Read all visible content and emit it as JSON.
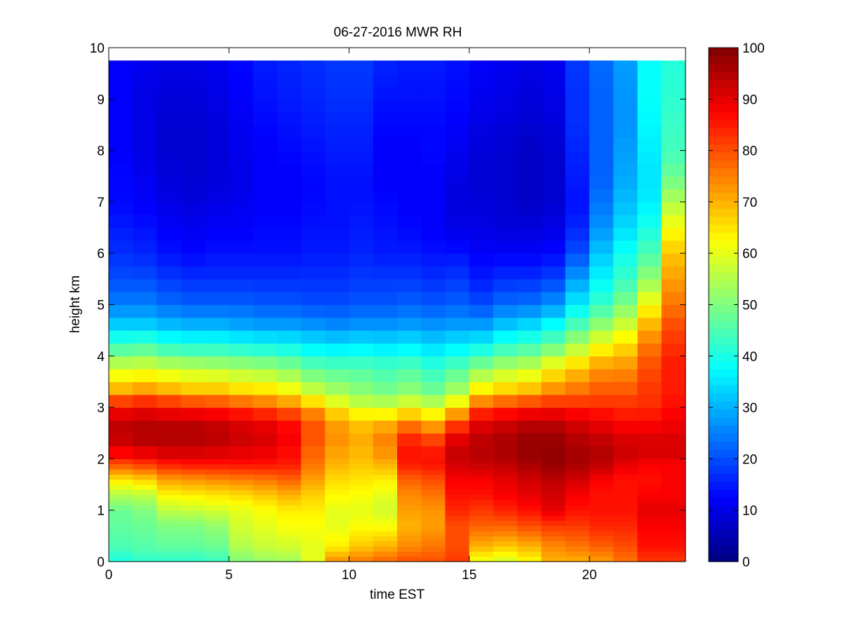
{
  "chart_data": {
    "type": "heatmap",
    "title": "06-27-2016 MWR RH",
    "xlabel": "time EST",
    "ylabel": "height km",
    "xlim": [
      0,
      24
    ],
    "ylim": [
      0,
      10
    ],
    "x_ticks": [
      0,
      5,
      10,
      15,
      20
    ],
    "y_ticks": [
      0,
      1,
      2,
      3,
      4,
      5,
      6,
      7,
      8,
      9,
      10
    ],
    "colorbar": {
      "min": 0,
      "max": 100,
      "ticks": [
        0,
        10,
        20,
        30,
        40,
        50,
        60,
        70,
        80,
        90,
        100
      ],
      "colormap": "jet"
    },
    "time_start": 0,
    "time_step": 1,
    "height_levels": [
      0,
      0.1,
      0.2,
      0.3,
      0.4,
      0.5,
      0.6,
      0.7,
      0.8,
      0.9,
      1.0,
      1.1,
      1.2,
      1.3,
      1.4,
      1.5,
      1.6,
      1.7,
      1.8,
      1.9,
      2.0,
      2.25,
      2.5,
      2.75,
      3.0,
      3.25,
      3.5,
      3.75,
      4.0,
      4.25,
      4.5,
      4.75,
      5.0,
      5.25,
      5.5,
      5.75,
      6.0,
      6.25,
      6.5,
      6.75,
      7.0,
      7.25,
      7.5,
      7.75,
      8.0,
      8.25,
      8.5,
      8.75,
      9.0,
      9.25,
      9.5,
      9.75
    ],
    "anchor_heights": [
      0,
      0.3,
      0.7,
      1.0,
      1.3,
      1.6,
      1.9,
      2.2,
      2.5,
      2.8,
      3.1,
      3.4,
      3.8,
      4.2,
      4.6,
      5.0,
      5.5,
      6.0,
      6.5,
      7.0,
      7.5,
      8.0,
      8.5,
      9.0,
      9.75
    ],
    "rh_profiles": [
      [
        40,
        45,
        47,
        48,
        55,
        65,
        80,
        90,
        95,
        92,
        82,
        68,
        57,
        44,
        33,
        25,
        20,
        17,
        15,
        13,
        13,
        12,
        12,
        12,
        12
      ],
      [
        42,
        46,
        48,
        50,
        56,
        67,
        82,
        92,
        96,
        93,
        84,
        70,
        58,
        45,
        33,
        25,
        20,
        16,
        14,
        12,
        11,
        10,
        10,
        10,
        11
      ],
      [
        42,
        47,
        50,
        56,
        63,
        72,
        85,
        93,
        96,
        92,
        82,
        68,
        56,
        42,
        31,
        23,
        18,
        14,
        12,
        10,
        9,
        8,
        8,
        9,
        10
      ],
      [
        42,
        47,
        50,
        57,
        64,
        73,
        86,
        93,
        96,
        92,
        80,
        66,
        55,
        41,
        30,
        22,
        17,
        13,
        11,
        9,
        8,
        8,
        8,
        9,
        10
      ],
      [
        43,
        48,
        52,
        58,
        65,
        74,
        86,
        92,
        95,
        91,
        79,
        66,
        54,
        41,
        30,
        22,
        17,
        14,
        12,
        10,
        9,
        9,
        9,
        10,
        11
      ],
      [
        50,
        55,
        58,
        60,
        66,
        75,
        86,
        91,
        93,
        89,
        77,
        64,
        53,
        40,
        29,
        22,
        17,
        14,
        12,
        11,
        10,
        11,
        11,
        12,
        13
      ],
      [
        52,
        57,
        60,
        62,
        68,
        76,
        86,
        90,
        92,
        87,
        75,
        63,
        52,
        39,
        28,
        21,
        17,
        14,
        13,
        12,
        12,
        12,
        13,
        14,
        15
      ],
      [
        53,
        58,
        62,
        64,
        70,
        78,
        85,
        87,
        89,
        84,
        72,
        60,
        50,
        38,
        28,
        21,
        17,
        14,
        13,
        12,
        12,
        13,
        14,
        15,
        16
      ],
      [
        60,
        60,
        62,
        64,
        67,
        72,
        76,
        78,
        80,
        78,
        66,
        55,
        46,
        36,
        27,
        20,
        17,
        15,
        14,
        13,
        13,
        14,
        15,
        16,
        17
      ],
      [
        74,
        64,
        60,
        60,
        63,
        66,
        70,
        72,
        74,
        70,
        60,
        52,
        45,
        35,
        26,
        20,
        17,
        15,
        14,
        14,
        14,
        15,
        16,
        17,
        18
      ],
      [
        76,
        68,
        62,
        60,
        62,
        65,
        68,
        70,
        71,
        66,
        56,
        50,
        45,
        36,
        27,
        21,
        18,
        16,
        15,
        14,
        14,
        15,
        16,
        17,
        18
      ],
      [
        78,
        70,
        62,
        58,
        60,
        64,
        70,
        74,
        75,
        66,
        55,
        48,
        44,
        35,
        27,
        21,
        18,
        15,
        14,
        13,
        12,
        12,
        13,
        14,
        16
      ],
      [
        80,
        74,
        70,
        72,
        74,
        78,
        85,
        86,
        82,
        70,
        58,
        50,
        45,
        36,
        28,
        22,
        18,
        15,
        13,
        12,
        12,
        12,
        13,
        14,
        15
      ],
      [
        80,
        76,
        72,
        73,
        76,
        80,
        86,
        85,
        78,
        66,
        55,
        47,
        42,
        34,
        27,
        21,
        17,
        14,
        12,
        12,
        12,
        13,
        13,
        14,
        15
      ],
      [
        82,
        80,
        80,
        84,
        86,
        88,
        92,
        93,
        88,
        76,
        62,
        52,
        45,
        36,
        28,
        22,
        18,
        14,
        10,
        9,
        10,
        11,
        12,
        13,
        14
      ],
      [
        60,
        70,
        78,
        82,
        86,
        88,
        93,
        95,
        93,
        88,
        75,
        62,
        50,
        38,
        28,
        20,
        15,
        12,
        10,
        9,
        8,
        9,
        10,
        11,
        12
      ],
      [
        58,
        68,
        78,
        84,
        88,
        90,
        94,
        96,
        95,
        90,
        78,
        65,
        54,
        42,
        32,
        23,
        17,
        12,
        9,
        8,
        8,
        8,
        9,
        10,
        11
      ],
      [
        62,
        70,
        80,
        86,
        90,
        92,
        96,
        98,
        97,
        92,
        80,
        67,
        56,
        44,
        34,
        24,
        17,
        12,
        9,
        7,
        7,
        7,
        8,
        9,
        10
      ],
      [
        70,
        74,
        82,
        90,
        92,
        94,
        98,
        98,
        97,
        92,
        82,
        72,
        62,
        48,
        38,
        27,
        19,
        13,
        10,
        8,
        8,
        8,
        9,
        10,
        11
      ],
      [
        70,
        76,
        82,
        86,
        88,
        92,
        96,
        96,
        94,
        90,
        82,
        75,
        67,
        55,
        45,
        36,
        28,
        20,
        16,
        14,
        15,
        16,
        17,
        17,
        18
      ],
      [
        72,
        78,
        84,
        86,
        86,
        88,
        94,
        95,
        92,
        88,
        82,
        78,
        72,
        62,
        52,
        43,
        37,
        32,
        27,
        24,
        22,
        22,
        22,
        22,
        23
      ],
      [
        76,
        80,
        84,
        86,
        86,
        86,
        90,
        93,
        90,
        86,
        82,
        78,
        73,
        66,
        58,
        50,
        43,
        39,
        34,
        31,
        29,
        28,
        27,
        27,
        28
      ],
      [
        82,
        86,
        88,
        90,
        88,
        86,
        88,
        92,
        90,
        86,
        83,
        82,
        80,
        76,
        70,
        62,
        52,
        45,
        40,
        36,
        35,
        36,
        37,
        38,
        38
      ],
      [
        82,
        86,
        88,
        90,
        88,
        88,
        88,
        92,
        90,
        88,
        86,
        85,
        85,
        83,
        80,
        76,
        72,
        68,
        62,
        55,
        48,
        44,
        43,
        42,
        41
      ]
    ]
  }
}
